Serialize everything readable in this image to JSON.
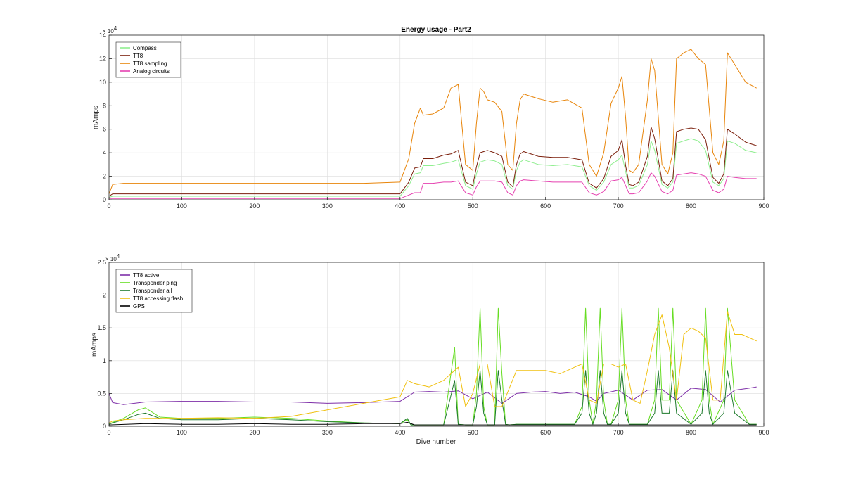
{
  "chart_data": [
    {
      "type": "line",
      "title": "Energy usage - Part2",
      "xlabel": "",
      "ylabel": "mAmps",
      "y_multiplier_label": "× 10",
      "y_multiplier_exponent": "4",
      "xlim": [
        0,
        900
      ],
      "ylim": [
        0,
        14
      ],
      "x_ticks": [
        "0",
        "100",
        "200",
        "300",
        "400",
        "500",
        "600",
        "700",
        "800",
        "900"
      ],
      "y_ticks": [
        "0",
        "2",
        "4",
        "6",
        "8",
        "10",
        "12",
        "14"
      ],
      "grid": true,
      "legend_position": "top-left",
      "series": [
        {
          "name": "Compass",
          "color": "#90ee90",
          "x": [
            0,
            5,
            20,
            50,
            100,
            150,
            200,
            250,
            300,
            350,
            400,
            412,
            420,
            428,
            432,
            445,
            460,
            470,
            480,
            490,
            500,
            505,
            510,
            515,
            520,
            530,
            540,
            548,
            555,
            560,
            565,
            570,
            590,
            610,
            630,
            650,
            660,
            670,
            680,
            690,
            700,
            705,
            710,
            715,
            720,
            728,
            740,
            745,
            750,
            760,
            768,
            775,
            780,
            790,
            800,
            810,
            820,
            830,
            838,
            845,
            850,
            860,
            875,
            890
          ],
          "y": [
            0.2,
            0.3,
            0.3,
            0.3,
            0.3,
            0.3,
            0.3,
            0.3,
            0.3,
            0.3,
            0.3,
            1.2,
            2.2,
            2.3,
            2.9,
            2.9,
            3.1,
            3.2,
            3.4,
            1.2,
            0.9,
            2.2,
            3.2,
            3.3,
            3.4,
            3.3,
            3.0,
            1.2,
            0.9,
            2.5,
            3.2,
            3.4,
            3.0,
            2.9,
            3.0,
            2.8,
            1.2,
            0.8,
            1.5,
            3.0,
            3.4,
            3.8,
            2.4,
            1.0,
            1.0,
            1.2,
            3.0,
            5.0,
            4.2,
            1.3,
            1.0,
            1.5,
            4.8,
            5.0,
            5.2,
            5.0,
            4.2,
            1.5,
            1.2,
            1.8,
            5.0,
            4.8,
            4.2,
            4.0
          ]
        },
        {
          "name": "TT8",
          "color": "#7b1f0c",
          "x": [
            0,
            5,
            20,
            50,
            100,
            150,
            200,
            250,
            300,
            350,
            400,
            412,
            420,
            428,
            432,
            445,
            460,
            470,
            480,
            490,
            500,
            505,
            510,
            515,
            520,
            530,
            540,
            548,
            555,
            560,
            565,
            570,
            590,
            610,
            630,
            650,
            660,
            670,
            680,
            690,
            700,
            705,
            710,
            715,
            720,
            728,
            740,
            745,
            750,
            760,
            768,
            775,
            780,
            790,
            800,
            810,
            820,
            830,
            838,
            845,
            850,
            860,
            875,
            890
          ],
          "y": [
            0.3,
            0.5,
            0.5,
            0.5,
            0.5,
            0.5,
            0.5,
            0.5,
            0.5,
            0.5,
            0.5,
            1.5,
            2.7,
            2.8,
            3.5,
            3.5,
            3.8,
            3.9,
            4.2,
            1.5,
            1.2,
            2.8,
            4.0,
            4.1,
            4.2,
            4.0,
            3.7,
            1.5,
            1.1,
            3.0,
            3.9,
            4.1,
            3.7,
            3.6,
            3.6,
            3.4,
            1.4,
            1.0,
            1.8,
            3.7,
            4.2,
            5.1,
            2.9,
            1.3,
            1.2,
            1.5,
            3.7,
            6.2,
            5.2,
            1.6,
            1.2,
            1.8,
            5.8,
            6.0,
            6.1,
            6.0,
            5.1,
            1.9,
            1.4,
            2.2,
            6.0,
            5.6,
            4.9,
            4.6
          ]
        },
        {
          "name": "TT8 sampling",
          "color": "#e8850a",
          "x": [
            0,
            5,
            20,
            50,
            100,
            150,
            200,
            250,
            300,
            350,
            400,
            412,
            420,
            428,
            432,
            445,
            460,
            470,
            480,
            490,
            500,
            505,
            510,
            515,
            520,
            530,
            540,
            548,
            555,
            560,
            565,
            570,
            590,
            610,
            630,
            650,
            660,
            670,
            680,
            690,
            700,
            705,
            710,
            715,
            720,
            728,
            740,
            745,
            750,
            760,
            768,
            775,
            780,
            790,
            800,
            810,
            820,
            830,
            838,
            845,
            850,
            860,
            875,
            890
          ],
          "y": [
            0.5,
            1.3,
            1.4,
            1.4,
            1.4,
            1.4,
            1.4,
            1.4,
            1.4,
            1.4,
            1.5,
            3.5,
            6.5,
            7.8,
            7.2,
            7.3,
            7.8,
            9.5,
            9.8,
            3.0,
            2.5,
            6.5,
            9.5,
            9.2,
            8.5,
            8.3,
            7.5,
            3.0,
            2.5,
            6.5,
            8.5,
            9.0,
            8.6,
            8.3,
            8.5,
            7.8,
            3.0,
            2.0,
            4.0,
            8.2,
            9.5,
            10.5,
            7.0,
            2.5,
            2.3,
            3.0,
            8.5,
            12.0,
            11.0,
            3.0,
            2.2,
            4.0,
            12.0,
            12.5,
            12.8,
            12.0,
            11.5,
            4.0,
            3.0,
            5.0,
            12.5,
            11.5,
            10.0,
            9.5
          ]
        },
        {
          "name": "Analog circuits",
          "color": "#e541b0",
          "x": [
            0,
            5,
            20,
            50,
            100,
            150,
            200,
            250,
            300,
            350,
            400,
            412,
            420,
            428,
            432,
            445,
            460,
            470,
            480,
            490,
            500,
            505,
            510,
            515,
            520,
            530,
            540,
            548,
            555,
            560,
            565,
            570,
            590,
            610,
            630,
            650,
            660,
            670,
            680,
            690,
            700,
            705,
            710,
            715,
            720,
            728,
            740,
            745,
            750,
            760,
            768,
            775,
            780,
            790,
            800,
            810,
            820,
            830,
            838,
            845,
            850,
            860,
            875,
            890
          ],
          "y": [
            0.1,
            0.1,
            0.1,
            0.1,
            0.1,
            0.1,
            0.1,
            0.1,
            0.1,
            0.1,
            0.1,
            0.4,
            0.6,
            0.6,
            1.4,
            1.4,
            1.5,
            1.5,
            1.6,
            0.6,
            0.4,
            1.1,
            1.6,
            1.6,
            1.6,
            1.6,
            1.5,
            0.6,
            0.4,
            1.2,
            1.6,
            1.7,
            1.6,
            1.5,
            1.5,
            1.5,
            0.6,
            0.4,
            0.7,
            1.6,
            1.7,
            1.9,
            1.2,
            0.5,
            0.5,
            0.6,
            1.6,
            2.3,
            2.0,
            0.7,
            0.5,
            0.8,
            2.1,
            2.2,
            2.3,
            2.2,
            2.0,
            0.8,
            0.6,
            0.9,
            2.0,
            1.9,
            1.8,
            1.8
          ]
        }
      ]
    },
    {
      "type": "line",
      "title": "",
      "xlabel": "Dive number",
      "ylabel": "mAmps",
      "y_multiplier_label": "× 10",
      "y_multiplier_exponent": "4",
      "xlim": [
        0,
        900
      ],
      "ylim": [
        0,
        2.5
      ],
      "x_ticks": [
        "0",
        "100",
        "200",
        "300",
        "400",
        "500",
        "600",
        "700",
        "800",
        "900"
      ],
      "y_ticks": [
        "0",
        "0.5",
        "1",
        "1.5",
        "2",
        "2.5"
      ],
      "grid": true,
      "legend_position": "top-left",
      "series": [
        {
          "name": "TT8 active",
          "color": "#7e2fa8",
          "x": [
            0,
            5,
            20,
            50,
            100,
            150,
            200,
            250,
            300,
            350,
            400,
            420,
            440,
            460,
            480,
            500,
            520,
            540,
            560,
            580,
            600,
            620,
            640,
            660,
            670,
            680,
            700,
            720,
            740,
            760,
            780,
            800,
            820,
            840,
            860,
            880,
            890
          ],
          "y": [
            0.5,
            0.36,
            0.33,
            0.37,
            0.38,
            0.38,
            0.37,
            0.37,
            0.35,
            0.36,
            0.38,
            0.52,
            0.53,
            0.52,
            0.54,
            0.42,
            0.52,
            0.35,
            0.5,
            0.52,
            0.53,
            0.5,
            0.52,
            0.45,
            0.38,
            0.5,
            0.55,
            0.4,
            0.55,
            0.56,
            0.4,
            0.58,
            0.56,
            0.37,
            0.55,
            0.58,
            0.6
          ]
        },
        {
          "name": "Transponder ping",
          "color": "#66dd22",
          "x": [
            0,
            5,
            20,
            40,
            50,
            70,
            100,
            150,
            200,
            250,
            300,
            350,
            400,
            410,
            415,
            420,
            460,
            475,
            480,
            490,
            500,
            505,
            510,
            515,
            520,
            530,
            535,
            540,
            545,
            550,
            560,
            600,
            640,
            650,
            655,
            660,
            665,
            670,
            675,
            680,
            685,
            690,
            700,
            705,
            710,
            715,
            720,
            740,
            750,
            755,
            760,
            770,
            775,
            780,
            800,
            815,
            820,
            825,
            830,
            845,
            850,
            860,
            880,
            890
          ],
          "y": [
            0.03,
            0.06,
            0.12,
            0.25,
            0.28,
            0.14,
            0.12,
            0.12,
            0.14,
            0.12,
            0.08,
            0.05,
            0.04,
            0.1,
            0.02,
            0.02,
            0.02,
            1.2,
            0.03,
            0.02,
            0.02,
            0.5,
            1.8,
            0.3,
            0.02,
            0.02,
            1.8,
            0.8,
            0.03,
            0.02,
            0.03,
            0.03,
            0.03,
            0.3,
            1.8,
            0.4,
            0.03,
            0.4,
            1.8,
            0.4,
            0.03,
            0.03,
            0.4,
            1.8,
            0.4,
            0.03,
            0.03,
            0.03,
            0.4,
            1.8,
            0.4,
            0.4,
            1.8,
            0.4,
            0.03,
            0.4,
            1.8,
            0.4,
            0.03,
            0.4,
            1.8,
            0.4,
            0.03,
            0.03
          ]
        },
        {
          "name": "Transponder all",
          "color": "#1e7a2c",
          "x": [
            0,
            5,
            20,
            40,
            50,
            70,
            100,
            150,
            200,
            250,
            300,
            350,
            400,
            410,
            415,
            420,
            460,
            475,
            480,
            490,
            500,
            505,
            510,
            515,
            520,
            530,
            535,
            540,
            545,
            550,
            560,
            600,
            640,
            650,
            655,
            660,
            665,
            670,
            675,
            680,
            685,
            690,
            700,
            705,
            710,
            715,
            720,
            740,
            750,
            755,
            760,
            770,
            775,
            780,
            800,
            815,
            820,
            825,
            830,
            845,
            850,
            860,
            880,
            890
          ],
          "y": [
            0.03,
            0.05,
            0.1,
            0.18,
            0.2,
            0.12,
            0.1,
            0.1,
            0.12,
            0.1,
            0.07,
            0.05,
            0.04,
            0.12,
            0.02,
            0.02,
            0.02,
            0.7,
            0.03,
            0.02,
            0.02,
            0.3,
            0.85,
            0.2,
            0.02,
            0.02,
            0.85,
            0.4,
            0.03,
            0.02,
            0.03,
            0.03,
            0.03,
            0.2,
            0.85,
            0.2,
            0.03,
            0.2,
            0.85,
            0.2,
            0.03,
            0.03,
            0.2,
            0.85,
            0.2,
            0.03,
            0.03,
            0.03,
            0.2,
            0.85,
            0.2,
            0.2,
            0.85,
            0.2,
            0.03,
            0.2,
            0.85,
            0.2,
            0.03,
            0.2,
            0.85,
            0.2,
            0.03,
            0.03
          ]
        },
        {
          "name": "TT8 accessing flash",
          "color": "#f0c010",
          "x": [
            0,
            5,
            20,
            50,
            100,
            150,
            200,
            250,
            300,
            350,
            400,
            410,
            420,
            440,
            460,
            470,
            480,
            490,
            500,
            510,
            520,
            530,
            540,
            560,
            580,
            600,
            620,
            640,
            650,
            660,
            670,
            680,
            690,
            700,
            710,
            720,
            730,
            740,
            750,
            760,
            770,
            780,
            790,
            800,
            810,
            820,
            830,
            840,
            850,
            860,
            870,
            880,
            890
          ],
          "y": [
            0.05,
            0.08,
            0.1,
            0.12,
            0.12,
            0.13,
            0.12,
            0.15,
            0.25,
            0.35,
            0.45,
            0.7,
            0.65,
            0.6,
            0.7,
            0.8,
            0.9,
            0.3,
            0.5,
            0.95,
            0.95,
            0.3,
            0.3,
            0.85,
            0.85,
            0.85,
            0.8,
            0.9,
            0.95,
            0.4,
            0.35,
            0.95,
            0.95,
            0.9,
            0.95,
            0.4,
            0.35,
            0.85,
            1.4,
            1.7,
            1.2,
            0.4,
            1.4,
            1.5,
            1.45,
            1.35,
            0.4,
            0.4,
            1.75,
            1.4,
            1.4,
            1.35,
            1.3
          ]
        },
        {
          "name": "GPS",
          "color": "#000000",
          "x": [
            0,
            50,
            100,
            150,
            200,
            250,
            300,
            350,
            400,
            410,
            420,
            450,
            500,
            550,
            600,
            650,
            700,
            750,
            800,
            850,
            890
          ],
          "y": [
            0.02,
            0.04,
            0.03,
            0.03,
            0.04,
            0.03,
            0.03,
            0.04,
            0.04,
            0.06,
            0.02,
            0.02,
            0.02,
            0.02,
            0.02,
            0.02,
            0.02,
            0.02,
            0.02,
            0.02,
            0.02
          ]
        }
      ]
    }
  ]
}
